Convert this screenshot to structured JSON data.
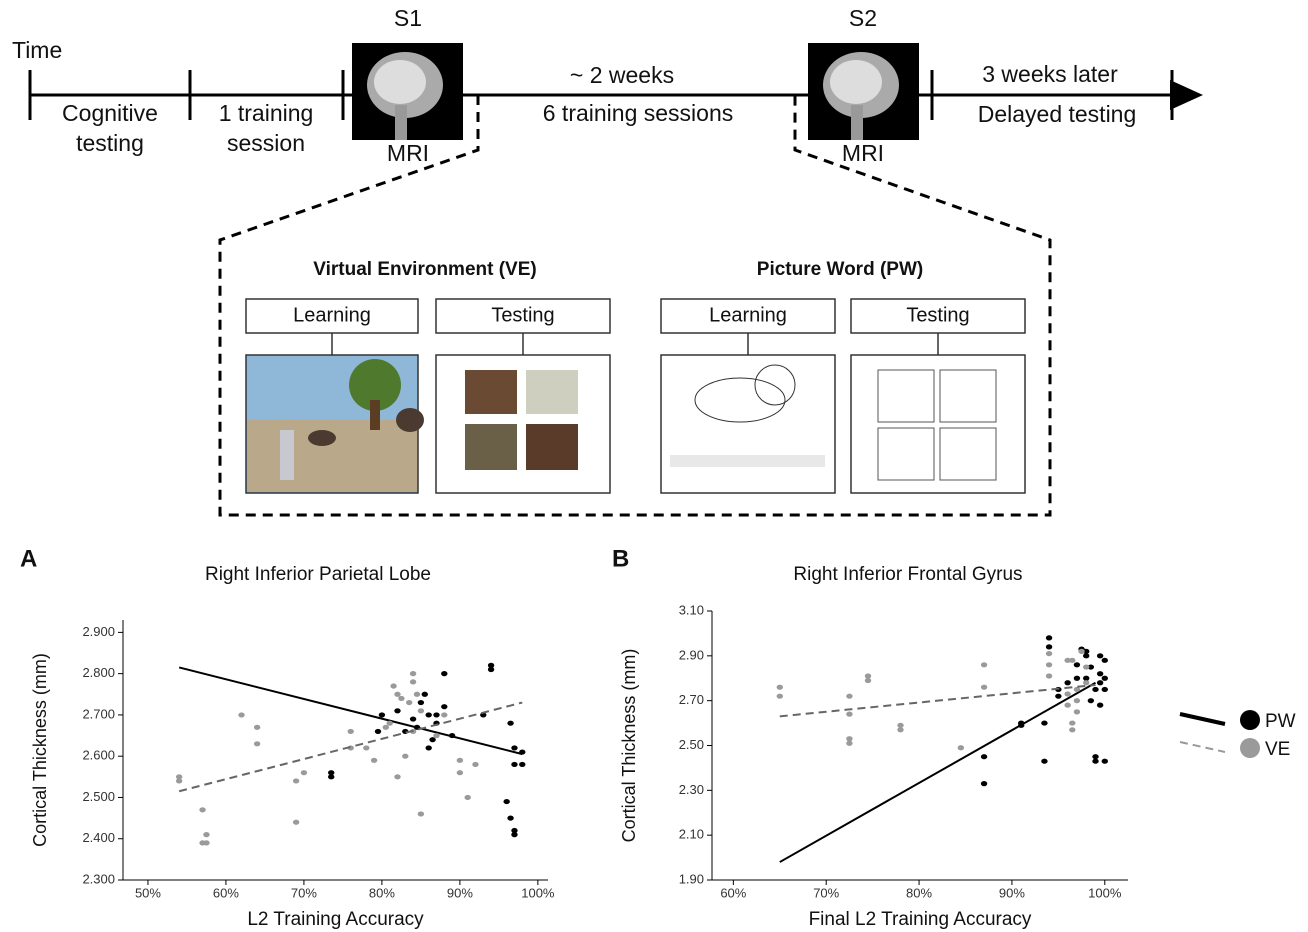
{
  "timeline": {
    "time_label": "Time",
    "stage1": [
      "Cognitive",
      "testing"
    ],
    "stage2": [
      "1 training",
      "session"
    ],
    "gap_top": "~ 2 weeks",
    "gap_bottom": "6 training sessions",
    "late_top": "3 weeks later",
    "late_bottom": "Delayed testing",
    "scan1": {
      "label": "S1",
      "caption": "MRI"
    },
    "scan2": {
      "label": "S2",
      "caption": "MRI"
    }
  },
  "design": {
    "tasks": [
      {
        "title": "Virtual Environment (VE)",
        "learning": "Learning",
        "testing": "Testing"
      },
      {
        "title": "Picture Word (PW)",
        "learning": "Learning",
        "testing": "Testing"
      }
    ]
  },
  "chart_data": [
    {
      "type": "scatter",
      "panel": "A",
      "title": "Right Inferior Parietal Lobe",
      "x_label": "L2 Training Accuracy",
      "y_label": "Cortical Thickness (mm)",
      "legend": "right",
      "xlim": [
        46.8,
        101.3
      ],
      "ylim": [
        2.3,
        2.93
      ],
      "xticks": [
        {
          "value": 50,
          "label": "50%"
        },
        {
          "value": 60,
          "label": "60%"
        },
        {
          "value": 70,
          "label": "70%"
        },
        {
          "value": 80,
          "label": "80%"
        },
        {
          "value": 90,
          "label": "90%"
        },
        {
          "value": 100,
          "label": "100%"
        }
      ],
      "yticks": [
        {
          "value": 2.3,
          "label": "2.300"
        },
        {
          "value": 2.4,
          "label": "2.400"
        },
        {
          "value": 2.5,
          "label": "2.500"
        },
        {
          "value": 2.6,
          "label": "2.600"
        },
        {
          "value": 2.7,
          "label": "2.700"
        },
        {
          "value": 2.8,
          "label": "2.800"
        },
        {
          "value": 2.9,
          "label": "2.900"
        }
      ],
      "series": [
        {
          "name": "PW",
          "color": "#000000",
          "dash": false,
          "fit_x": [
            54,
            98
          ],
          "fit_y": [
            2.815,
            2.605
          ],
          "x": [
            73.5,
            73.5,
            79.5,
            80,
            82,
            83,
            84,
            84.5,
            85,
            85.5,
            86,
            86,
            86.5,
            87,
            87,
            88,
            88,
            89,
            93,
            94,
            94,
            96,
            96.5,
            96.5,
            97,
            97,
            97,
            97,
            98,
            98
          ],
          "values": [
            2.56,
            2.55,
            2.66,
            2.7,
            2.71,
            2.66,
            2.69,
            2.67,
            2.73,
            2.75,
            2.7,
            2.62,
            2.64,
            2.68,
            2.7,
            2.8,
            2.72,
            2.65,
            2.7,
            2.82,
            2.81,
            2.49,
            2.45,
            2.68,
            2.41,
            2.42,
            2.62,
            2.58,
            2.61,
            2.58
          ]
        },
        {
          "name": "VE",
          "color": "#9a9a9a",
          "dash": true,
          "fit_x": [
            54,
            98
          ],
          "fit_y": [
            2.515,
            2.73
          ],
          "x": [
            54,
            54,
            57,
            57,
            57.5,
            57.5,
            62,
            64,
            64,
            69,
            69,
            70,
            76,
            76,
            78,
            79,
            80.5,
            81,
            81.5,
            82,
            82,
            82.5,
            83,
            83.5,
            84,
            84,
            84,
            85,
            85,
            87,
            88,
            90,
            90,
            91,
            92,
            84.5
          ],
          "values": [
            2.55,
            2.54,
            2.47,
            2.39,
            2.41,
            2.39,
            2.7,
            2.67,
            2.63,
            2.44,
            2.54,
            2.56,
            2.66,
            2.62,
            2.62,
            2.59,
            2.67,
            2.68,
            2.77,
            2.75,
            2.55,
            2.74,
            2.6,
            2.73,
            2.8,
            2.78,
            2.66,
            2.46,
            2.71,
            2.65,
            2.7,
            2.56,
            2.59,
            2.5,
            2.58,
            2.75
          ]
        }
      ]
    },
    {
      "type": "scatter",
      "panel": "B",
      "title": "Right Inferior Frontal Gyrus",
      "x_label": "Final L2 Training Accuracy",
      "y_label": "Cortical Thickness (mm)",
      "xlim": [
        57.7,
        102.5
      ],
      "ylim": [
        1.9,
        3.1
      ],
      "xticks": [
        {
          "value": 60,
          "label": "60%"
        },
        {
          "value": 70,
          "label": "70%"
        },
        {
          "value": 80,
          "label": "80%"
        },
        {
          "value": 90,
          "label": "90%"
        },
        {
          "value": 100,
          "label": "100%"
        }
      ],
      "yticks": [
        {
          "value": 1.9,
          "label": "1.90"
        },
        {
          "value": 2.1,
          "label": "2.10"
        },
        {
          "value": 2.3,
          "label": "2.30"
        },
        {
          "value": 2.5,
          "label": "2.50"
        },
        {
          "value": 2.7,
          "label": "2.70"
        },
        {
          "value": 2.9,
          "label": "2.90"
        },
        {
          "value": 3.1,
          "label": "3.10"
        }
      ],
      "series": [
        {
          "name": "PW",
          "color": "#000000",
          "dash": false,
          "fit_x": [
            65,
            99
          ],
          "fit_y": [
            1.98,
            2.78
          ],
          "x": [
            87,
            87,
            91,
            91,
            93.5,
            93.5,
            94,
            94,
            95,
            95,
            96,
            97,
            97.5,
            98,
            98,
            98.5,
            98.5,
            99,
            99,
            99,
            99.5,
            99.5,
            99.5,
            100,
            100,
            100,
            100,
            99.5,
            98,
            97
          ],
          "values": [
            2.45,
            2.33,
            2.59,
            2.6,
            2.6,
            2.43,
            2.98,
            2.94,
            2.75,
            2.72,
            2.78,
            2.8,
            2.93,
            2.92,
            2.9,
            2.85,
            2.7,
            2.75,
            2.45,
            2.43,
            2.82,
            2.78,
            2.9,
            2.88,
            2.8,
            2.75,
            2.43,
            2.68,
            2.8,
            2.86
          ]
        },
        {
          "name": "VE",
          "color": "#9a9a9a",
          "dash": true,
          "fit_x": [
            65,
            99
          ],
          "fit_y": [
            2.63,
            2.77
          ],
          "x": [
            65,
            65,
            72.5,
            72.5,
            72.5,
            72.5,
            74.5,
            74.5,
            78,
            78,
            84.5,
            87,
            87,
            94,
            94,
            94,
            96,
            96,
            96,
            96.5,
            96.5,
            97,
            97,
            97.5,
            98,
            98,
            97,
            96.5
          ],
          "values": [
            2.76,
            2.72,
            2.72,
            2.64,
            2.53,
            2.51,
            2.81,
            2.79,
            2.59,
            2.57,
            2.49,
            2.86,
            2.76,
            2.91,
            2.86,
            2.81,
            2.88,
            2.73,
            2.68,
            2.6,
            2.57,
            2.65,
            2.7,
            2.92,
            2.85,
            2.78,
            2.75,
            2.88
          ]
        }
      ]
    }
  ]
}
